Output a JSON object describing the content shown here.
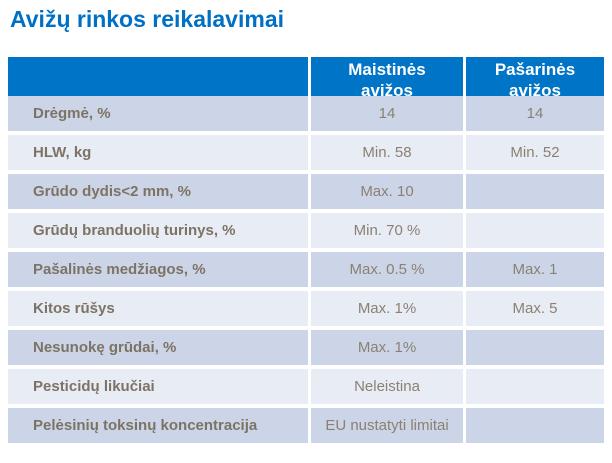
{
  "title": "Avižų rinkos reikalavimai",
  "table": {
    "columns": [
      "",
      "Maistinės avižos",
      "Pašarinės avižos"
    ],
    "rows": [
      {
        "label": "Drėgmė, %",
        "food": "14",
        "feed": "14"
      },
      {
        "label": "HLW, kg",
        "food": "Min. 58",
        "feed": "Min. 52"
      },
      {
        "label": "Grūdo dydis<2 mm, %",
        "food": "Max. 10",
        "feed": ""
      },
      {
        "label": "Grūdų branduolių turinys, %",
        "food": "Min. 70 %",
        "feed": ""
      },
      {
        "label": "Pašalinės medžiagos, %",
        "food": "Max. 0.5 %",
        "feed": "Max. 1"
      },
      {
        "label": "Kitos rūšys",
        "food": "Max. 1%",
        "feed": "Max. 5"
      },
      {
        "label": "Nesunokę grūdai, %",
        "food": "Max. 1%",
        "feed": ""
      },
      {
        "label": "Pesticidų likučiai",
        "food": "Neleistina",
        "feed": ""
      },
      {
        "label": "Pelėsinių toksinų koncentracija",
        "food": "EU nustatyti limitai",
        "feed": ""
      }
    ],
    "colors": {
      "header_bg": "#0074C6",
      "header_text": "#ffffff",
      "row_dark": "#CBD5E7",
      "row_light": "#E8ECF5",
      "label_text": "#7D7365",
      "value_text": "#8B8172",
      "title_text": "#0070C5"
    }
  }
}
